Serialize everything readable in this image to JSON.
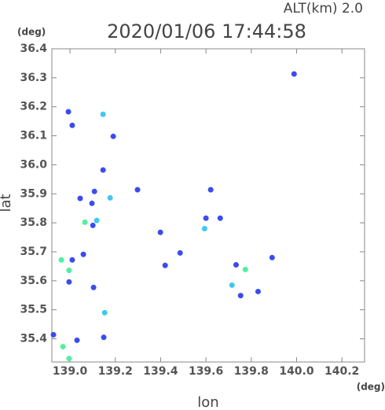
{
  "chart_data": {
    "type": "scatter",
    "title": "2020/01/06 17:44:58",
    "subtitle": "ALT(km) 2.0",
    "x_label": "lon",
    "y_label": "lat",
    "x_unit": "(deg)",
    "y_unit": "(deg)",
    "xlim": [
      138.92,
      140.3
    ],
    "ylim": [
      35.32,
      36.4
    ],
    "xticks": [
      {
        "value": 139.0,
        "label": "139.0"
      },
      139.2,
      139.4,
      139.6,
      139.8,
      {
        "value": 140.0,
        "label": "140.0"
      },
      140.2
    ],
    "yticks": [
      35.4,
      35.5,
      35.6,
      35.7,
      35.8,
      35.9,
      {
        "value": 36.0,
        "label": "36.0"
      },
      36.1,
      36.2,
      36.3,
      36.4
    ],
    "series": [
      {
        "color": "#3a4cf0",
        "x": [
          139.989,
          138.993,
          139.01,
          139.146,
          139.108,
          139.298,
          139.621,
          139.097,
          139.6,
          139.663,
          139.399,
          139.101,
          139.486,
          139.42,
          139.733,
          139.892,
          139.753,
          139.83,
          139.059,
          139.01,
          138.996,
          139.104,
          139.031,
          139.149,
          138.927,
          139.191,
          139.045
        ],
        "y": [
          36.313,
          36.183,
          36.136,
          35.982,
          35.908,
          35.914,
          35.914,
          35.867,
          35.816,
          35.816,
          35.767,
          35.791,
          35.696,
          35.653,
          35.655,
          35.68,
          35.549,
          35.563,
          35.691,
          35.672,
          35.596,
          35.577,
          35.395,
          35.405,
          35.414,
          36.098,
          35.884
        ]
      },
      {
        "color": "#40c8f0",
        "x": [
          139.146,
          139.177,
          139.715,
          139.118,
          139.594,
          139.153
        ],
        "y": [
          36.174,
          35.886,
          35.585,
          35.808,
          35.78,
          35.49
        ]
      },
      {
        "color": "#50f0a0",
        "x": [
          138.962,
          138.996,
          138.969,
          139.774,
          139.066,
          138.996
        ],
        "y": [
          35.672,
          35.636,
          35.373,
          35.639,
          35.802,
          35.332
        ]
      }
    ]
  }
}
